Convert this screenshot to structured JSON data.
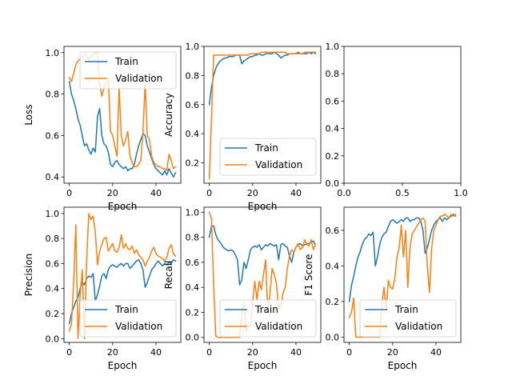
{
  "colors": {
    "train": "#1f77b4",
    "validation": "#ff7f0e"
  },
  "chart_data": [
    {
      "type": "line",
      "xlabel": "Epoch",
      "ylabel": "Loss",
      "xlim": [
        -2.45,
        51.45
      ],
      "ylim": [
        0.37,
        1.03
      ],
      "xticks": [
        0,
        20,
        40
      ],
      "xtick_labels": [
        "0",
        "20",
        "40"
      ],
      "yticks": [
        0.4,
        0.6,
        0.8,
        1.0
      ],
      "ytick_labels": [
        "0.4",
        "0.6",
        "0.8",
        "1.0"
      ],
      "legend": "top-right",
      "x": [
        0,
        1,
        2,
        3,
        4,
        5,
        6,
        7,
        8,
        9,
        10,
        11,
        12,
        13,
        14,
        15,
        16,
        17,
        18,
        19,
        20,
        21,
        22,
        23,
        24,
        25,
        26,
        27,
        28,
        29,
        30,
        31,
        32,
        33,
        34,
        35,
        36,
        37,
        38,
        39,
        40,
        41,
        42,
        43,
        44,
        45,
        46,
        47,
        48,
        49
      ],
      "series": [
        {
          "name": "Train",
          "key": "train",
          "values": [
            0.86,
            0.8,
            0.77,
            0.73,
            0.68,
            0.65,
            0.6,
            0.55,
            0.56,
            0.53,
            0.51,
            0.54,
            0.52,
            0.69,
            0.73,
            0.6,
            0.56,
            0.55,
            0.52,
            0.46,
            0.45,
            0.47,
            0.48,
            0.46,
            0.45,
            0.44,
            0.45,
            0.43,
            0.44,
            0.44,
            0.46,
            0.51,
            0.55,
            0.58,
            0.61,
            0.6,
            0.55,
            0.52,
            0.49,
            0.46,
            0.44,
            0.43,
            0.42,
            0.41,
            0.43,
            0.41,
            0.44,
            0.42,
            0.4,
            0.42
          ]
        },
        {
          "name": "Validation",
          "key": "validation",
          "values": [
            0.88,
            0.86,
            0.9,
            0.94,
            0.96,
            0.97,
            0.98,
            0.99,
            0.99,
            0.97,
            0.98,
            0.99,
            1.0,
            1.0,
            0.85,
            0.79,
            0.83,
            0.85,
            0.87,
            0.62,
            0.6,
            0.55,
            0.5,
            0.83,
            0.6,
            0.55,
            0.58,
            0.62,
            0.5,
            0.47,
            0.45,
            0.45,
            0.46,
            0.48,
            0.62,
            0.85,
            0.6,
            0.58,
            0.5,
            0.47,
            0.46,
            0.45,
            0.45,
            0.44,
            0.44,
            0.43,
            0.51,
            0.48,
            0.44,
            0.45
          ]
        }
      ]
    },
    {
      "type": "line",
      "xlabel": "Epoch",
      "ylabel": "Accuracy",
      "xlim": [
        -2.45,
        51.45
      ],
      "ylim": [
        0.06,
        1.0
      ],
      "xticks": [
        0,
        20,
        40
      ],
      "xtick_labels": [
        "0",
        "20",
        "40"
      ],
      "yticks": [
        0.2,
        0.4,
        0.6,
        0.8,
        1.0
      ],
      "ytick_labels": [
        "0.2",
        "0.4",
        "0.6",
        "0.8",
        "1.0"
      ],
      "legend": "bottom-right",
      "x": [
        0,
        1,
        2,
        3,
        4,
        5,
        6,
        7,
        8,
        9,
        10,
        11,
        12,
        13,
        14,
        15,
        16,
        17,
        18,
        19,
        20,
        21,
        22,
        23,
        24,
        25,
        26,
        27,
        28,
        29,
        30,
        31,
        32,
        33,
        34,
        35,
        36,
        37,
        38,
        39,
        40,
        41,
        42,
        43,
        44,
        45,
        46,
        47,
        48,
        49
      ],
      "series": [
        {
          "name": "Train",
          "key": "train",
          "values": [
            0.6,
            0.72,
            0.8,
            0.85,
            0.88,
            0.9,
            0.91,
            0.92,
            0.92,
            0.93,
            0.93,
            0.93,
            0.94,
            0.94,
            0.94,
            0.88,
            0.9,
            0.91,
            0.92,
            0.93,
            0.93,
            0.94,
            0.94,
            0.95,
            0.94,
            0.94,
            0.95,
            0.95,
            0.95,
            0.95,
            0.96,
            0.95,
            0.94,
            0.92,
            0.93,
            0.94,
            0.94,
            0.95,
            0.95,
            0.95,
            0.95,
            0.96,
            0.95,
            0.95,
            0.95,
            0.95,
            0.96,
            0.95,
            0.96,
            0.95
          ]
        },
        {
          "name": "Validation",
          "key": "validation",
          "values": [
            0.09,
            0.5,
            0.94,
            0.94,
            0.94,
            0.94,
            0.94,
            0.94,
            0.94,
            0.94,
            0.94,
            0.94,
            0.94,
            0.94,
            0.94,
            0.94,
            0.94,
            0.94,
            0.94,
            0.95,
            0.95,
            0.95,
            0.95,
            0.95,
            0.96,
            0.96,
            0.96,
            0.96,
            0.96,
            0.96,
            0.96,
            0.96,
            0.96,
            0.96,
            0.96,
            0.96,
            0.95,
            0.95,
            0.95,
            0.95,
            0.95,
            0.95,
            0.95,
            0.95,
            0.96,
            0.96,
            0.96,
            0.96,
            0.96,
            0.96
          ]
        }
      ]
    },
    {
      "type": "line",
      "xlabel": "",
      "ylabel": "",
      "xlim": [
        0,
        1
      ],
      "ylim": [
        0,
        1
      ],
      "xticks": [
        0,
        0.5,
        1
      ],
      "xtick_labels": [
        "0.0",
        "0.5",
        "1.0"
      ],
      "yticks": [
        0,
        0.2,
        0.4,
        0.6,
        0.8,
        1.0
      ],
      "ytick_labels": [
        "0.0",
        "0.2",
        "0.4",
        "0.6",
        "0.8",
        "1.0"
      ],
      "x": [],
      "series": []
    },
    {
      "type": "line",
      "xlabel": "Epoch",
      "ylabel": "Precision",
      "xlim": [
        -2.45,
        51.45
      ],
      "ylim": [
        -0.03,
        1.05
      ],
      "xticks": [
        0,
        20,
        40
      ],
      "xtick_labels": [
        "0",
        "20",
        "40"
      ],
      "yticks": [
        0.0,
        0.2,
        0.4,
        0.6,
        0.8,
        1.0
      ],
      "ytick_labels": [
        "0.0",
        "0.2",
        "0.4",
        "0.6",
        "0.8",
        "1.0"
      ],
      "legend": "bottom-right",
      "x": [
        0,
        1,
        2,
        3,
        4,
        5,
        6,
        7,
        8,
        9,
        10,
        11,
        12,
        13,
        14,
        15,
        16,
        17,
        18,
        19,
        20,
        21,
        22,
        23,
        24,
        25,
        26,
        27,
        28,
        29,
        30,
        31,
        32,
        33,
        34,
        35,
        36,
        37,
        38,
        39,
        40,
        41,
        42,
        43,
        44,
        45,
        46,
        47,
        48,
        49
      ],
      "series": [
        {
          "name": "Train",
          "key": "train",
          "values": [
            0.12,
            0.2,
            0.25,
            0.3,
            0.33,
            0.4,
            0.45,
            0.43,
            0.48,
            0.5,
            0.49,
            0.52,
            0.3,
            0.35,
            0.42,
            0.5,
            0.52,
            0.48,
            0.55,
            0.58,
            0.59,
            0.58,
            0.57,
            0.59,
            0.6,
            0.58,
            0.6,
            0.6,
            0.56,
            0.58,
            0.6,
            0.62,
            0.63,
            0.6,
            0.55,
            0.41,
            0.45,
            0.5,
            0.55,
            0.57,
            0.6,
            0.62,
            0.6,
            0.58,
            0.6,
            0.59,
            0.61,
            0.6,
            0.63,
            0.62
          ]
        },
        {
          "name": "Validation",
          "key": "validation",
          "values": [
            0.06,
            0.12,
            0.45,
            0.91,
            0.0,
            0.35,
            0.55,
            0.0,
            0.62,
            1.0,
            0.95,
            0.98,
            0.85,
            0.59,
            0.7,
            0.75,
            0.8,
            0.81,
            0.7,
            0.73,
            0.76,
            0.7,
            0.69,
            0.73,
            0.83,
            0.72,
            0.76,
            0.72,
            0.71,
            0.74,
            0.68,
            0.71,
            0.67,
            0.65,
            0.63,
            0.58,
            0.62,
            0.65,
            0.7,
            0.73,
            0.68,
            0.66,
            0.65,
            0.64,
            0.62,
            0.65,
            0.72,
            0.75,
            0.68,
            0.66
          ]
        }
      ]
    },
    {
      "type": "line",
      "xlabel": "Epoch",
      "ylabel": "Recall",
      "xlim": [
        -2.45,
        51.45
      ],
      "ylim": [
        -0.04,
        1.04
      ],
      "xticks": [
        0,
        20,
        40
      ],
      "xtick_labels": [
        "0",
        "20",
        "40"
      ],
      "yticks": [
        0.0,
        0.2,
        0.4,
        0.6,
        0.8,
        1.0
      ],
      "ytick_labels": [
        "0.0",
        "0.2",
        "0.4",
        "0.6",
        "0.8",
        "1.0"
      ],
      "legend": "bottom-right",
      "x": [
        0,
        1,
        2,
        3,
        4,
        5,
        6,
        7,
        8,
        9,
        10,
        11,
        12,
        13,
        14,
        15,
        16,
        17,
        18,
        19,
        20,
        21,
        22,
        23,
        24,
        25,
        26,
        27,
        28,
        29,
        30,
        31,
        32,
        33,
        34,
        35,
        36,
        37,
        38,
        39,
        40,
        41,
        42,
        43,
        44,
        45,
        46,
        47,
        48,
        49
      ],
      "series": [
        {
          "name": "Train",
          "key": "train",
          "values": [
            0.8,
            0.89,
            0.89,
            0.82,
            0.78,
            0.76,
            0.73,
            0.71,
            0.7,
            0.69,
            0.7,
            0.69,
            0.66,
            0.62,
            0.42,
            0.46,
            0.6,
            0.55,
            0.62,
            0.7,
            0.72,
            0.73,
            0.72,
            0.74,
            0.7,
            0.72,
            0.74,
            0.73,
            0.75,
            0.74,
            0.73,
            0.74,
            0.62,
            0.74,
            0.75,
            0.73,
            0.72,
            0.65,
            0.6,
            0.68,
            0.72,
            0.74,
            0.75,
            0.73,
            0.74,
            0.75,
            0.75,
            0.76,
            0.77,
            0.74
          ]
        },
        {
          "name": "Validation",
          "key": "validation",
          "values": [
            1.0,
            0.95,
            0.42,
            0.01,
            0.0,
            0.0,
            0.0,
            0.0,
            0.0,
            0.0,
            0.0,
            0.0,
            0.0,
            0.0,
            0.0,
            0.18,
            0.28,
            0.05,
            0.08,
            0.1,
            0.28,
            0.45,
            0.3,
            0.45,
            0.38,
            0.5,
            0.62,
            0.2,
            0.35,
            0.55,
            0.5,
            0.43,
            0.22,
            0.25,
            0.35,
            0.4,
            0.55,
            0.65,
            0.7,
            0.68,
            0.72,
            0.75,
            0.7,
            0.72,
            0.78,
            0.74,
            0.73,
            0.78,
            0.7,
            0.74
          ]
        }
      ]
    },
    {
      "type": "line",
      "xlabel": "Epoch",
      "ylabel": "F1 Score",
      "xlim": [
        -2.45,
        51.45
      ],
      "ylim": [
        -0.03,
        0.73
      ],
      "xticks": [
        0,
        20,
        40
      ],
      "xtick_labels": [
        "0",
        "20",
        "40"
      ],
      "yticks": [
        0.0,
        0.2,
        0.4,
        0.6
      ],
      "ytick_labels": [
        "0.0",
        "0.2",
        "0.4",
        "0.6"
      ],
      "legend": "bottom-right",
      "x": [
        0,
        1,
        2,
        3,
        4,
        5,
        6,
        7,
        8,
        9,
        10,
        11,
        12,
        13,
        14,
        15,
        16,
        17,
        18,
        19,
        20,
        21,
        22,
        23,
        24,
        25,
        26,
        27,
        28,
        29,
        30,
        31,
        32,
        33,
        34,
        35,
        36,
        37,
        38,
        39,
        40,
        41,
        42,
        43,
        44,
        45,
        46,
        47,
        48,
        49
      ],
      "series": [
        {
          "name": "Train",
          "key": "train",
          "values": [
            0.2,
            0.29,
            0.34,
            0.4,
            0.45,
            0.48,
            0.52,
            0.55,
            0.56,
            0.58,
            0.57,
            0.59,
            0.4,
            0.45,
            0.52,
            0.56,
            0.58,
            0.59,
            0.62,
            0.65,
            0.66,
            0.65,
            0.64,
            0.65,
            0.66,
            0.65,
            0.67,
            0.67,
            0.65,
            0.66,
            0.66,
            0.67,
            0.67,
            0.65,
            0.6,
            0.47,
            0.5,
            0.55,
            0.6,
            0.63,
            0.65,
            0.66,
            0.67,
            0.65,
            0.67,
            0.66,
            0.67,
            0.68,
            0.69,
            0.68
          ]
        },
        {
          "name": "Validation",
          "key": "validation",
          "values": [
            0.11,
            0.14,
            0.22,
            0.0,
            0.0,
            0.0,
            0.0,
            0.0,
            0.0,
            0.0,
            0.0,
            0.0,
            0.0,
            0.0,
            0.0,
            0.18,
            0.28,
            0.15,
            0.32,
            0.28,
            0.27,
            0.33,
            0.45,
            0.5,
            0.63,
            0.45,
            0.6,
            0.28,
            0.5,
            0.58,
            0.6,
            0.62,
            0.64,
            0.66,
            0.67,
            0.65,
            0.4,
            0.25,
            0.5,
            0.6,
            0.63,
            0.66,
            0.68,
            0.68,
            0.69,
            0.68,
            0.67,
            0.69,
            0.68,
            0.69
          ]
        }
      ]
    }
  ]
}
